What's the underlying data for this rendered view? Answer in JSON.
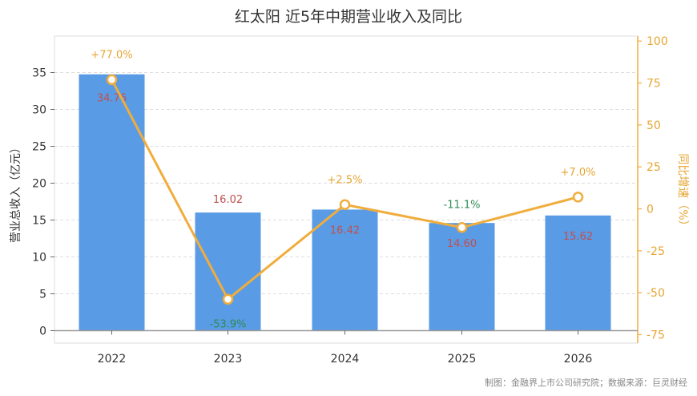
{
  "chart_data": {
    "type": "bar",
    "title": "红太阳 近5年中期营业收入及同比",
    "categories": [
      "2022",
      "2023",
      "2024",
      "2025",
      "2026"
    ],
    "series": [
      {
        "name": "营业总收入（亿元）",
        "type": "bar",
        "axis": "left",
        "values": [
          34.76,
          16.02,
          16.42,
          14.6,
          15.62
        ],
        "labels": [
          "34.76",
          "16.02",
          "16.42",
          "14.60",
          "15.62"
        ],
        "color": "#5a9be6",
        "label_color": "#c0504d"
      },
      {
        "name": "同比增速（%）",
        "type": "line",
        "axis": "right",
        "values": [
          77.0,
          -53.9,
          2.5,
          -11.1,
          7.0
        ],
        "labels": [
          "+77.0%",
          "-53.9%",
          "+2.5%",
          "-11.1%",
          "+7.0%"
        ],
        "color": "#f0ad3c",
        "positive_label_color": "#e6a532",
        "negative_label_color": "#2e8b57"
      }
    ],
    "ylabel": "营业总收入（亿元）",
    "ylabel_right": "同比增速（%）",
    "ylim": [
      0,
      39.1
    ],
    "ylim_right": [
      -75,
      100
    ],
    "yticks": [
      0,
      5,
      10,
      15,
      20,
      25,
      30,
      35
    ],
    "yticks_right": [
      -75,
      -50,
      -25,
      0,
      25,
      50,
      75,
      100
    ],
    "grid": true,
    "legend": "none"
  },
  "source_note": "制图：金融界上市公司研究院；数据来源：巨灵财经"
}
